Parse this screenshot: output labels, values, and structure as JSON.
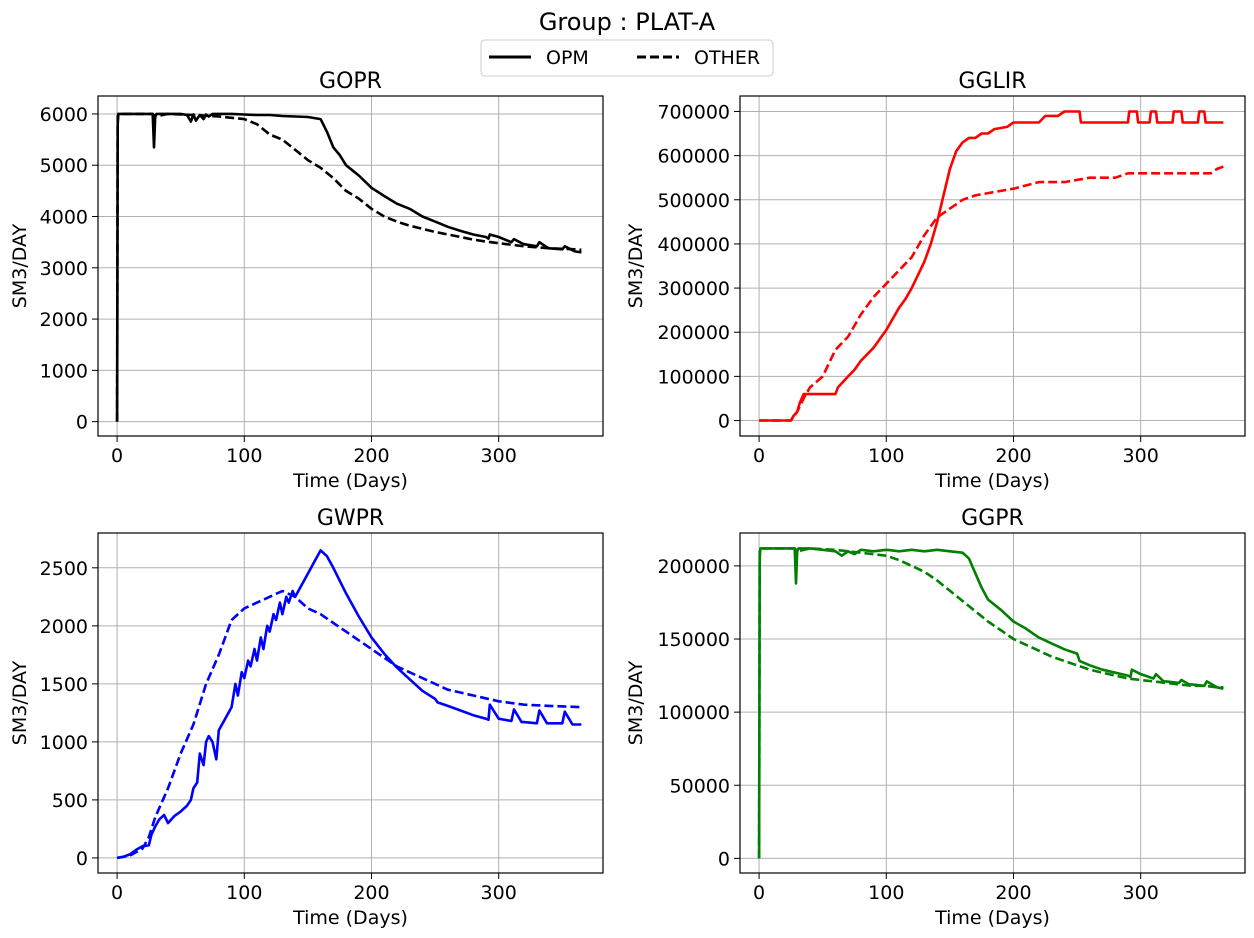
{
  "suptitle": "Group : PLAT-A",
  "legend": {
    "placement": "top-center",
    "entries": [
      {
        "label": "OPM",
        "style": "solid"
      },
      {
        "label": "OTHER",
        "style": "dashed"
      }
    ]
  },
  "chart_data": [
    {
      "type": "line",
      "title": "GOPR",
      "xlabel": "Time (Days)",
      "ylabel": "SM3/DAY",
      "xlim": [
        -15,
        382
      ],
      "ylim": [
        -280,
        6350
      ],
      "xticks": [
        0,
        100,
        200,
        300
      ],
      "yticks": [
        0,
        1000,
        2000,
        3000,
        4000,
        5000,
        6000
      ],
      "grid": true,
      "color": "#000000",
      "series": [
        {
          "name": "OPM",
          "style": "solid",
          "x": [
            0,
            0.5,
            1,
            28,
            29,
            30,
            31,
            40,
            50,
            55,
            58,
            60,
            62,
            65,
            68,
            70,
            72,
            75,
            80,
            90,
            100,
            110,
            120,
            130,
            140,
            150,
            160,
            165,
            170,
            175,
            180,
            190,
            200,
            210,
            220,
            230,
            240,
            250,
            260,
            270,
            280,
            290,
            292,
            293,
            300,
            310,
            312,
            318,
            320,
            330,
            332,
            338,
            340,
            350,
            352,
            360,
            365
          ],
          "y": [
            0,
            5800,
            6000,
            6000,
            5350,
            5950,
            6000,
            6000,
            6000,
            5980,
            5850,
            5990,
            5870,
            5980,
            5900,
            5990,
            5950,
            6000,
            6000,
            6000,
            5990,
            5980,
            5980,
            5960,
            5950,
            5940,
            5900,
            5650,
            5350,
            5200,
            5000,
            4800,
            4560,
            4400,
            4250,
            4150,
            4000,
            3900,
            3800,
            3720,
            3650,
            3600,
            3570,
            3650,
            3600,
            3500,
            3560,
            3480,
            3460,
            3420,
            3500,
            3400,
            3380,
            3360,
            3420,
            3320,
            3300
          ]
        },
        {
          "name": "OTHER",
          "style": "dashed",
          "x": [
            0,
            0.5,
            1,
            28,
            30,
            40,
            60,
            80,
            100,
            110,
            120,
            130,
            140,
            150,
            160,
            170,
            180,
            190,
            200,
            210,
            220,
            230,
            240,
            250,
            260,
            270,
            280,
            290,
            300,
            310,
            320,
            330,
            340,
            350,
            360,
            365
          ],
          "y": [
            0,
            5950,
            6000,
            6000,
            5950,
            6000,
            5980,
            5950,
            5900,
            5800,
            5600,
            5500,
            5300,
            5100,
            4950,
            4750,
            4500,
            4350,
            4150,
            4000,
            3900,
            3820,
            3760,
            3700,
            3650,
            3600,
            3550,
            3510,
            3480,
            3450,
            3420,
            3400,
            3380,
            3370,
            3360,
            3350
          ]
        }
      ]
    },
    {
      "type": "line",
      "title": "GGLIR",
      "xlabel": "Time (Days)",
      "ylabel": "SM3/DAY",
      "xlim": [
        -15,
        382
      ],
      "ylim": [
        -35000,
        735000
      ],
      "xticks": [
        0,
        100,
        200,
        300
      ],
      "yticks": [
        0,
        100000,
        200000,
        300000,
        400000,
        500000,
        600000,
        700000
      ],
      "grid": true,
      "color": "#ff0000",
      "series": [
        {
          "name": "OPM",
          "style": "solid",
          "x": [
            0,
            25,
            27,
            30,
            32,
            35,
            60,
            62,
            70,
            75,
            80,
            85,
            90,
            95,
            100,
            105,
            110,
            115,
            120,
            125,
            130,
            135,
            140,
            145,
            150,
            155,
            160,
            165,
            170,
            175,
            180,
            185,
            195,
            200,
            220,
            225,
            235,
            240,
            252,
            253,
            290,
            291,
            297,
            298,
            307,
            308,
            312,
            313,
            325,
            326,
            332,
            333,
            345,
            346,
            350,
            351,
            357,
            358,
            365
          ],
          "y": [
            0,
            0,
            10000,
            20000,
            40000,
            60000,
            60000,
            75000,
            100000,
            115000,
            135000,
            150000,
            165000,
            185000,
            205000,
            230000,
            255000,
            275000,
            300000,
            330000,
            360000,
            400000,
            450000,
            510000,
            570000,
            610000,
            630000,
            640000,
            640000,
            650000,
            650000,
            660000,
            665000,
            675000,
            675000,
            690000,
            690000,
            700000,
            700000,
            675000,
            675000,
            700000,
            700000,
            675000,
            675000,
            700000,
            700000,
            675000,
            675000,
            700000,
            700000,
            675000,
            675000,
            700000,
            700000,
            675000,
            675000,
            675000,
            675000
          ]
        },
        {
          "name": "OTHER",
          "style": "dashed",
          "x": [
            0,
            25,
            30,
            35,
            40,
            50,
            60,
            70,
            80,
            90,
            100,
            110,
            120,
            130,
            140,
            150,
            160,
            170,
            180,
            200,
            220,
            240,
            260,
            280,
            290,
            300,
            320,
            340,
            355,
            360,
            365
          ],
          "y": [
            0,
            0,
            20000,
            50000,
            75000,
            100000,
            160000,
            190000,
            240000,
            280000,
            310000,
            340000,
            370000,
            420000,
            460000,
            480000,
            500000,
            510000,
            515000,
            525000,
            540000,
            540000,
            550000,
            550000,
            560000,
            560000,
            560000,
            560000,
            560000,
            570000,
            575000
          ]
        }
      ]
    },
    {
      "type": "line",
      "title": "GWPR",
      "xlabel": "Time (Days)",
      "ylabel": "SM3/DAY",
      "xlim": [
        -15,
        382
      ],
      "ylim": [
        -130,
        2800
      ],
      "xticks": [
        0,
        100,
        200,
        300
      ],
      "yticks": [
        0,
        500,
        1000,
        1500,
        2000,
        2500
      ],
      "grid": true,
      "color": "#0000ff",
      "series": [
        {
          "name": "OPM",
          "style": "solid",
          "x": [
            0,
            5,
            10,
            15,
            20,
            25,
            27,
            30,
            33,
            35,
            37,
            40,
            45,
            50,
            55,
            58,
            60,
            63,
            65,
            68,
            70,
            72,
            75,
            78,
            80,
            85,
            90,
            93,
            95,
            98,
            100,
            103,
            105,
            108,
            110,
            113,
            115,
            118,
            120,
            123,
            125,
            128,
            130,
            133,
            135,
            138,
            140,
            145,
            150,
            155,
            160,
            165,
            170,
            180,
            190,
            200,
            210,
            220,
            230,
            240,
            250,
            252,
            260,
            270,
            280,
            290,
            292,
            293,
            300,
            310,
            312,
            318,
            320,
            330,
            332,
            338,
            340,
            350,
            352,
            358,
            360,
            365
          ],
          "y": [
            0,
            10,
            30,
            70,
            100,
            110,
            200,
            270,
            330,
            350,
            370,
            300,
            360,
            400,
            450,
            500,
            600,
            650,
            900,
            800,
            1000,
            1050,
            1000,
            850,
            1100,
            1200,
            1300,
            1500,
            1400,
            1600,
            1550,
            1700,
            1650,
            1800,
            1700,
            1900,
            1800,
            2000,
            1950,
            2100,
            2050,
            2200,
            2100,
            2250,
            2200,
            2300,
            2250,
            2350,
            2450,
            2550,
            2650,
            2600,
            2500,
            2280,
            2080,
            1900,
            1760,
            1640,
            1540,
            1440,
            1370,
            1340,
            1310,
            1270,
            1230,
            1200,
            1190,
            1320,
            1200,
            1180,
            1280,
            1170,
            1170,
            1160,
            1270,
            1160,
            1160,
            1160,
            1260,
            1150,
            1150,
            1150
          ]
        },
        {
          "name": "OTHER",
          "style": "dashed",
          "x": [
            0,
            10,
            20,
            25,
            30,
            40,
            50,
            60,
            70,
            80,
            90,
            100,
            110,
            120,
            130,
            140,
            150,
            160,
            180,
            200,
            220,
            240,
            260,
            280,
            300,
            320,
            340,
            365
          ],
          "y": [
            0,
            20,
            80,
            180,
            350,
            600,
            900,
            1150,
            1500,
            1750,
            2050,
            2150,
            2200,
            2250,
            2300,
            2250,
            2150,
            2100,
            1950,
            1800,
            1650,
            1550,
            1450,
            1400,
            1350,
            1320,
            1310,
            1300
          ]
        }
      ]
    },
    {
      "type": "line",
      "title": "GGPR",
      "xlabel": "Time (Days)",
      "ylabel": "SM3/DAY",
      "xlim": [
        -15,
        382
      ],
      "ylim": [
        -10000,
        222500
      ],
      "xticks": [
        0,
        100,
        200,
        300
      ],
      "yticks": [
        0,
        50000,
        100000,
        150000,
        200000
      ],
      "grid": true,
      "color": "#008000",
      "series": [
        {
          "name": "OPM",
          "style": "solid",
          "x": [
            0,
            0.5,
            1,
            28,
            29,
            30,
            31,
            40,
            50,
            60,
            65,
            70,
            75,
            80,
            90,
            100,
            110,
            120,
            130,
            140,
            150,
            160,
            165,
            170,
            175,
            180,
            190,
            200,
            210,
            220,
            230,
            240,
            250,
            252,
            260,
            270,
            280,
            290,
            292,
            293,
            300,
            310,
            312,
            318,
            320,
            330,
            332,
            338,
            340,
            350,
            352,
            360,
            365
          ],
          "y": [
            0,
            205000,
            212000,
            212000,
            188000,
            210000,
            212000,
            212000,
            211000,
            210000,
            207000,
            210000,
            208000,
            211000,
            210000,
            211000,
            210000,
            211000,
            210000,
            211000,
            210000,
            209000,
            205000,
            195000,
            185000,
            177000,
            170000,
            162000,
            157000,
            151000,
            147000,
            143000,
            140000,
            135000,
            132000,
            129000,
            127000,
            125000,
            124000,
            129000,
            126000,
            123000,
            126000,
            121000,
            121000,
            120000,
            122000,
            119000,
            119000,
            118000,
            121000,
            117000,
            116000
          ]
        },
        {
          "name": "OTHER",
          "style": "dashed",
          "x": [
            0,
            0.5,
            1,
            28,
            30,
            40,
            60,
            80,
            100,
            110,
            120,
            130,
            140,
            150,
            160,
            170,
            180,
            190,
            200,
            210,
            220,
            230,
            240,
            250,
            260,
            270,
            280,
            290,
            300,
            310,
            320,
            330,
            340,
            350,
            360,
            365
          ],
          "y": [
            0,
            210000,
            212000,
            212000,
            210000,
            212000,
            211000,
            209000,
            207000,
            204000,
            200000,
            196000,
            190000,
            183000,
            176000,
            169000,
            162000,
            156000,
            150000,
            146000,
            142000,
            138000,
            135000,
            132000,
            129000,
            127000,
            125000,
            123000,
            122000,
            121000,
            120000,
            119000,
            118000,
            118000,
            117000,
            117000
          ]
        }
      ]
    }
  ]
}
